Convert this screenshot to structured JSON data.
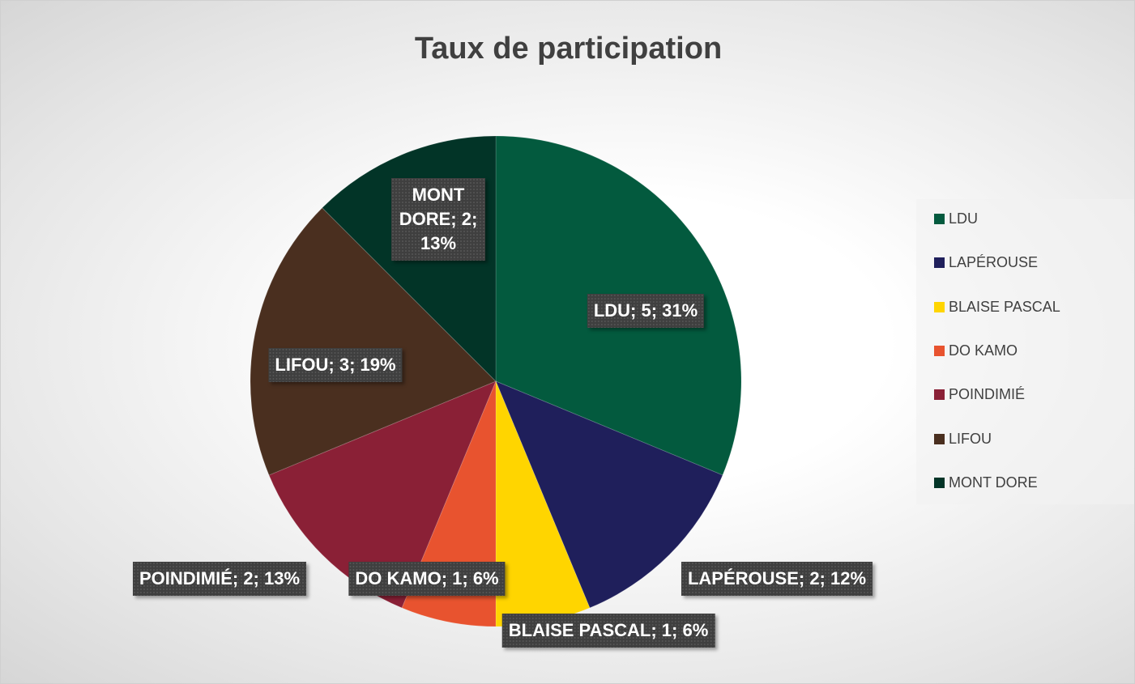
{
  "chart_data": {
    "type": "pie",
    "title": "Taux de participation",
    "categories": [
      "LDU",
      "LAPÉROUSE",
      "BLAISE PASCAL",
      "DO KAMO",
      "POINDIMIÉ",
      "LIFOU",
      "MONT DORE"
    ],
    "values": [
      5,
      2,
      1,
      1,
      2,
      3,
      2
    ],
    "value_labels": [
      "LDU; 5; 31%",
      "LAPÉROUSE; 2; 12%",
      "BLAISE PASCAL; 1; 6%",
      "DO KAMO; 1; 6%",
      "POINDIMIÉ; 2; 13%",
      "LIFOU; 3; 19%",
      "MONT DORE; 2; 13%"
    ],
    "colors": [
      "#035a3e",
      "#1f1f5b",
      "#ffd500",
      "#e8532f",
      "#8a2036",
      "#4a2f1f",
      "#023427"
    ],
    "legend": "right"
  }
}
